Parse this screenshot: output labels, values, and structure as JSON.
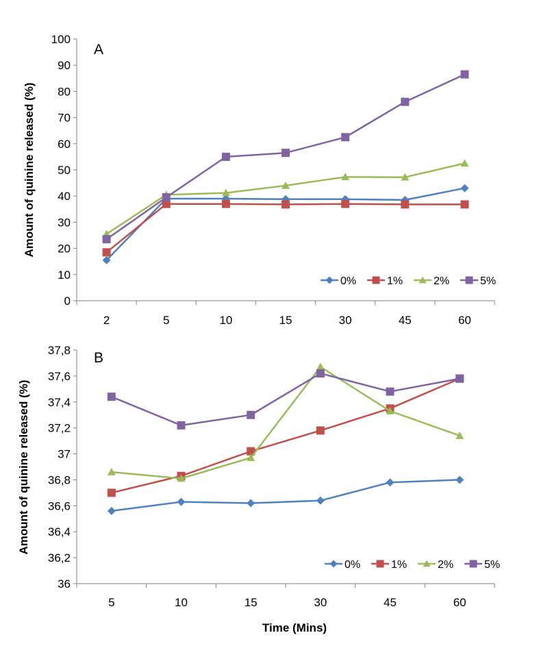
{
  "chart_data": [
    {
      "panel": "A",
      "type": "line",
      "ylabel": "Amount of quinine released (%)",
      "xlabel": "",
      "ylim": [
        0,
        100
      ],
      "yticks": [
        "0",
        "10",
        "20",
        "30",
        "40",
        "50",
        "60",
        "70",
        "80",
        "90",
        "100"
      ],
      "categories": [
        "2",
        "5",
        "10",
        "15",
        "30",
        "45",
        "60"
      ],
      "legend_position": "bottom-right",
      "series": [
        {
          "name": "0%",
          "marker": "diamond",
          "color": "#4f81bd",
          "values": [
            15.5,
            39,
            39,
            38.8,
            38.8,
            38.5,
            43
          ]
        },
        {
          "name": "1%",
          "marker": "square",
          "color": "#c0504d",
          "values": [
            18.5,
            37,
            37,
            36.8,
            37,
            36.8,
            36.8
          ]
        },
        {
          "name": "2%",
          "marker": "triangle",
          "color": "#9bbb59",
          "values": [
            25.5,
            40.5,
            41.2,
            44,
            47.3,
            47.2,
            52.5
          ]
        },
        {
          "name": "5%",
          "marker": "square",
          "color": "#8064a2",
          "values": [
            23.5,
            39.5,
            55,
            56.5,
            62.5,
            76,
            86.5
          ]
        }
      ]
    },
    {
      "panel": "B",
      "type": "line",
      "ylabel": "Amount of quinine released (%)",
      "xlabel": "Time  (Mins)",
      "ylim": [
        36,
        37.8
      ],
      "yticks": [
        "36",
        "36,2",
        "36,4",
        "36,6",
        "36,8",
        "37",
        "37,2",
        "37,4",
        "37,6",
        "37,8"
      ],
      "categories": [
        "5",
        "10",
        "15",
        "30",
        "45",
        "60"
      ],
      "legend_position": "bottom-right",
      "series": [
        {
          "name": "0%",
          "marker": "diamond",
          "color": "#4f81bd",
          "values": [
            36.56,
            36.63,
            36.62,
            36.64,
            36.78,
            36.8
          ]
        },
        {
          "name": "1%",
          "marker": "square",
          "color": "#c0504d",
          "values": [
            36.7,
            36.83,
            37.02,
            37.18,
            37.35,
            37.58
          ]
        },
        {
          "name": "2%",
          "marker": "triangle",
          "color": "#9bbb59",
          "values": [
            36.86,
            36.81,
            36.97,
            37.67,
            37.33,
            37.14
          ]
        },
        {
          "name": "5%",
          "marker": "square",
          "color": "#8064a2",
          "values": [
            37.44,
            37.22,
            37.3,
            37.62,
            37.48,
            37.58
          ]
        }
      ]
    }
  ]
}
